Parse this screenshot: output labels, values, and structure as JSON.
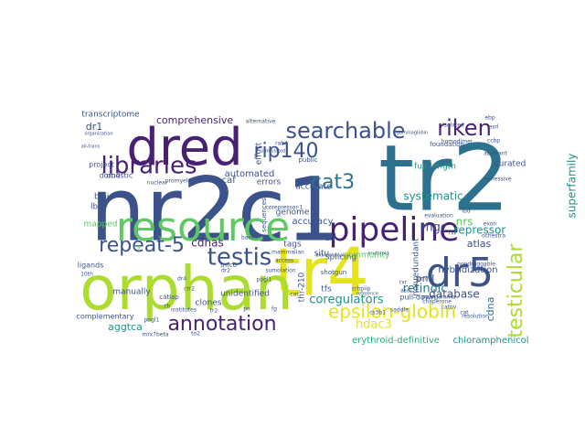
{
  "word_cloud": {
    "palette": {
      "background": "#ffffff",
      "dark_purple": "#482173",
      "navy": "#3b528b",
      "blue": "#2c728e",
      "teal": "#21918c",
      "green": "#28ae80",
      "light_green": "#5ec962",
      "lime": "#addc30",
      "yellow": "#e5e419"
    },
    "words": [
      {
        "text": "tr2",
        "color": "#2c728e"
      },
      {
        "text": "nr2c1",
        "color": "#3b528b"
      },
      {
        "text": "tr4",
        "color": "#e5e419"
      },
      {
        "text": "orphan",
        "color": "#addc30"
      },
      {
        "text": "dred",
        "color": "#482173"
      },
      {
        "text": "resource",
        "color": "#5ec962"
      },
      {
        "text": "pipeline",
        "color": "#482173"
      },
      {
        "text": "dr5",
        "color": "#3b528b"
      },
      {
        "text": "testis",
        "color": "#3b528b"
      },
      {
        "text": "libraries",
        "color": "#482173"
      },
      {
        "text": "searchable",
        "color": "#3b528b"
      },
      {
        "text": "riken",
        "color": "#482173"
      },
      {
        "text": "rip140",
        "color": "#3b528b"
      },
      {
        "text": "cat3",
        "color": "#2c728e"
      },
      {
        "text": "repeat-5",
        "color": "#3b528b"
      },
      {
        "text": "annotation",
        "color": "#482173"
      },
      {
        "text": "epsilon-globin",
        "color": "#e5e419"
      },
      {
        "text": "testicular",
        "color": "#addc30"
      },
      {
        "text": "coregulators",
        "color": "#21918c"
      },
      {
        "text": "hdac3",
        "color": "#e5e419"
      },
      {
        "text": "database",
        "color": "#3b528b"
      },
      {
        "text": "cdnas",
        "color": "#482173"
      },
      {
        "text": "retinoic",
        "color": "#2c728e"
      },
      {
        "text": "systematic",
        "color": "#21918c"
      },
      {
        "text": "superfamily",
        "color": "#21918c"
      },
      {
        "text": "mgc",
        "color": "#3b528b"
      },
      {
        "text": "repressor",
        "color": "#21918c"
      },
      {
        "text": "atlas",
        "color": "#3b528b"
      },
      {
        "text": "comprehensive",
        "color": "#482173"
      },
      {
        "text": "aggtca",
        "color": "#21918c"
      },
      {
        "text": "erythroid-definitive",
        "color": "#28ae80"
      },
      {
        "text": "chloramphenicol",
        "color": "#21918c"
      },
      {
        "text": "hybridization",
        "color": "#3b528b"
      },
      {
        "text": "splicing",
        "color": "#3b528b"
      },
      {
        "text": "pml",
        "color": "#3b528b"
      },
      {
        "text": "cdna",
        "color": "#2c728e"
      },
      {
        "text": "ontology",
        "color": "#3b528b"
      },
      {
        "text": "accuracy",
        "color": "#3b528b"
      },
      {
        "text": "full-length",
        "color": "#21918c"
      },
      {
        "text": "curated",
        "color": "#3b528b"
      },
      {
        "text": "errors",
        "color": "#3b528b"
      },
      {
        "text": "pcaf",
        "color": "#3b528b"
      },
      {
        "text": "automated",
        "color": "#3b528b"
      },
      {
        "text": "accurate",
        "color": "#3b528b"
      },
      {
        "text": "genome",
        "color": "#3b528b"
      },
      {
        "text": "nonredundant",
        "color": "#3b528b"
      },
      {
        "text": "tags",
        "color": "#3b528b"
      },
      {
        "text": "unidentified",
        "color": "#3b528b"
      },
      {
        "text": "tfs",
        "color": "#3b528b"
      },
      {
        "text": "thr-210",
        "color": "#3b528b"
      },
      {
        "text": "pull-down",
        "color": "#3b528b"
      },
      {
        "text": "situ",
        "color": "#3b528b"
      },
      {
        "text": "clones",
        "color": "#3b528b"
      },
      {
        "text": "manually",
        "color": "#3b528b"
      },
      {
        "text": "mapped",
        "color": "#5ec962"
      },
      {
        "text": "lbd",
        "color": "#3b528b"
      },
      {
        "text": "bioid",
        "color": "#3b528b"
      },
      {
        "text": "domestic",
        "color": "#3b528b"
      },
      {
        "text": "project",
        "color": "#3b528b"
      },
      {
        "text": "dbd",
        "color": "#3b528b"
      },
      {
        "text": "dr1",
        "color": "#3b528b"
      },
      {
        "text": "transcriptome",
        "color": "#3b528b"
      },
      {
        "text": "effort",
        "color": "#3b528b"
      },
      {
        "text": "community",
        "color": "#5ec962"
      },
      {
        "text": "complementary",
        "color": "#3b528b"
      },
      {
        "text": "ligands",
        "color": "#3b528b"
      },
      {
        "text": "catlap",
        "color": "#3b528b"
      },
      {
        "text": "shotgun",
        "color": "#3b528b"
      },
      {
        "text": "foundation",
        "color": "#3b528b"
      },
      {
        "text": "nrs",
        "color": "#5ec962"
      },
      {
        "text": "rs",
        "color": "#5ec962"
      },
      {
        "text": "tmc6",
        "color": "#3b528b"
      },
      {
        "text": "public",
        "color": "#3b528b"
      },
      {
        "text": "rab4",
        "color": "#3b528b"
      },
      {
        "text": "based",
        "color": "#3b528b"
      },
      {
        "text": "access",
        "color": "#3b528b"
      },
      {
        "text": "sequences",
        "color": "#3b528b"
      },
      {
        "text": "mammalian",
        "color": "#3b528b"
      },
      {
        "text": "institutes",
        "color": "#3b528b"
      },
      {
        "text": "promyelocytic",
        "color": "#3b528b"
      },
      {
        "text": "gammaglobin",
        "color": "#3b528b"
      },
      {
        "text": "pogl1",
        "color": "#3b528b"
      },
      {
        "text": "cat",
        "color": "#3b528b"
      },
      {
        "text": "crbpiip",
        "color": "#3b528b"
      },
      {
        "text": "reference",
        "color": "#3b528b"
      },
      {
        "text": "ctr2",
        "color": "#3b528b"
      },
      {
        "text": "dr4",
        "color": "#3b528b"
      },
      {
        "text": "dr2",
        "color": "#3b528b"
      },
      {
        "text": "tr2",
        "color": "#3b528b"
      },
      {
        "text": "nuclear",
        "color": "#3b528b"
      },
      {
        "text": "all-trans",
        "color": "#3b528b"
      },
      {
        "text": "organization",
        "color": "#3b528b"
      },
      {
        "text": "alternative",
        "color": "#3b528b"
      },
      {
        "text": "bidirectional",
        "color": "#3b528b"
      },
      {
        "text": "ervthroid",
        "color": "#3b528b"
      },
      {
        "text": "corepressor-1",
        "color": "#3b528b"
      },
      {
        "text": "mrx7beta",
        "color": "#3b528b"
      },
      {
        "text": "to2",
        "color": "#3b528b"
      },
      {
        "text": "catov",
        "color": "#3b528b"
      },
      {
        "text": "chaperone",
        "color": "#3b528b"
      },
      {
        "text": "resolution",
        "color": "#3b528b"
      },
      {
        "text": "saddle",
        "color": "#3b528b"
      },
      {
        "text": "nondruggable",
        "color": "#3b528b"
      },
      {
        "text": "ebp",
        "color": "#3b528b"
      },
      {
        "text": "esrl",
        "color": "#3b528b"
      },
      {
        "text": "cs3b1",
        "color": "#3b528b"
      },
      {
        "text": "ccbp",
        "color": "#3b528b"
      },
      {
        "text": "aberrant",
        "color": "#3b528b"
      },
      {
        "text": "ppargamma",
        "color": "#3b528b"
      },
      {
        "text": "rxr",
        "color": "#3b528b"
      },
      {
        "text": "lbd",
        "color": "#3b528b"
      },
      {
        "text": "repressive",
        "color": "#3b528b"
      },
      {
        "text": "exon",
        "color": "#3b528b"
      },
      {
        "text": "ochestra",
        "color": "#3b528b"
      },
      {
        "text": "isolated",
        "color": "#3b528b"
      },
      {
        "text": "homodimer",
        "color": "#3b528b"
      },
      {
        "text": "cat",
        "color": "#3b528b"
      },
      {
        "text": "evaluation",
        "color": "#3b528b"
      },
      {
        "text": "stimulated",
        "color": "#3b528b"
      },
      {
        "text": "sumolation",
        "color": "#3b528b"
      },
      {
        "text": "pogl1",
        "color": "#3b528b"
      },
      {
        "text": "rb",
        "color": "#3b528b"
      },
      {
        "text": "10th",
        "color": "#3b528b"
      },
      {
        "text": "pml",
        "color": "#3b528b"
      },
      {
        "text": "rxr",
        "color": "#3b528b"
      },
      {
        "text": "ascl",
        "color": "#3b528b"
      },
      {
        "text": "fg",
        "color": "#3b528b"
      },
      {
        "text": "pn",
        "color": "#3b528b"
      },
      {
        "text": "tfs",
        "color": "#3b528b"
      }
    ]
  }
}
